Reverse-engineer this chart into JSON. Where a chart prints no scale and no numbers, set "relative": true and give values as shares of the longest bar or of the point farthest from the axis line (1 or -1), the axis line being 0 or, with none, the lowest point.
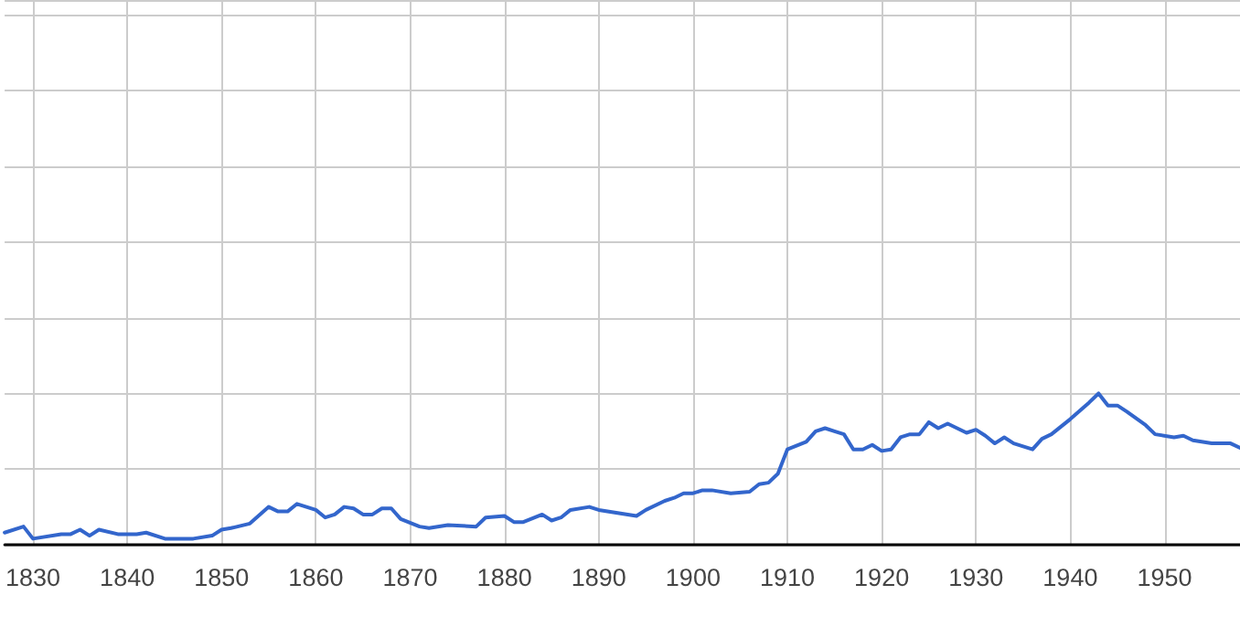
{
  "chart_data": {
    "type": "line",
    "relative": true,
    "grid": true,
    "marker": "none",
    "line_style": "solid",
    "xlim": [
      1827,
      1958
    ],
    "xticks": [
      1830,
      1840,
      1850,
      1860,
      1870,
      1880,
      1890,
      1900,
      1910,
      1920,
      1930,
      1940,
      1950
    ],
    "x": [
      1827,
      1829,
      1830,
      1833,
      1834,
      1835,
      1836,
      1837,
      1839,
      1841,
      1842,
      1844,
      1847,
      1849,
      1850,
      1851,
      1853,
      1855,
      1856,
      1857,
      1858,
      1860,
      1861,
      1862,
      1863,
      1864,
      1865,
      1866,
      1867,
      1868,
      1869,
      1871,
      1872,
      1874,
      1877,
      1878,
      1880,
      1881,
      1882,
      1884,
      1885,
      1886,
      1887,
      1889,
      1890,
      1892,
      1894,
      1895,
      1897,
      1898,
      1899,
      1900,
      1901,
      1902,
      1904,
      1906,
      1907,
      1908,
      1909,
      1910,
      1912,
      1913,
      1914,
      1915,
      1916,
      1917,
      1918,
      1919,
      1920,
      1921,
      1922,
      1923,
      1924,
      1925,
      1926,
      1927,
      1928,
      1929,
      1930,
      1931,
      1932,
      1933,
      1934,
      1935,
      1936,
      1937,
      1938,
      1940,
      1942,
      1943,
      1944,
      1945,
      1946,
      1948,
      1949,
      1951,
      1952,
      1953,
      1955,
      1956,
      1957,
      1958
    ],
    "series": [
      {
        "color": "#3366cc",
        "values": [
          0.08,
          0.12,
          0.04,
          0.07,
          0.07,
          0.1,
          0.06,
          0.1,
          0.07,
          0.07,
          0.08,
          0.04,
          0.04,
          0.06,
          0.1,
          0.11,
          0.14,
          0.25,
          0.22,
          0.22,
          0.27,
          0.23,
          0.18,
          0.2,
          0.25,
          0.24,
          0.2,
          0.2,
          0.24,
          0.24,
          0.17,
          0.12,
          0.11,
          0.13,
          0.12,
          0.18,
          0.19,
          0.15,
          0.15,
          0.2,
          0.16,
          0.18,
          0.23,
          0.25,
          0.23,
          0.21,
          0.19,
          0.23,
          0.29,
          0.31,
          0.34,
          0.34,
          0.36,
          0.36,
          0.34,
          0.35,
          0.4,
          0.41,
          0.47,
          0.63,
          0.68,
          0.75,
          0.77,
          0.75,
          0.73,
          0.63,
          0.63,
          0.66,
          0.62,
          0.63,
          0.71,
          0.73,
          0.73,
          0.81,
          0.77,
          0.8,
          0.77,
          0.74,
          0.76,
          0.72,
          0.67,
          0.71,
          0.67,
          0.65,
          0.63,
          0.7,
          0.73,
          0.83,
          0.94,
          1,
          0.92,
          0.92,
          0.88,
          0.79,
          0.73,
          0.71,
          0.72,
          0.69,
          0.67,
          0.67,
          0.67,
          0.64
        ]
      }
    ]
  }
}
